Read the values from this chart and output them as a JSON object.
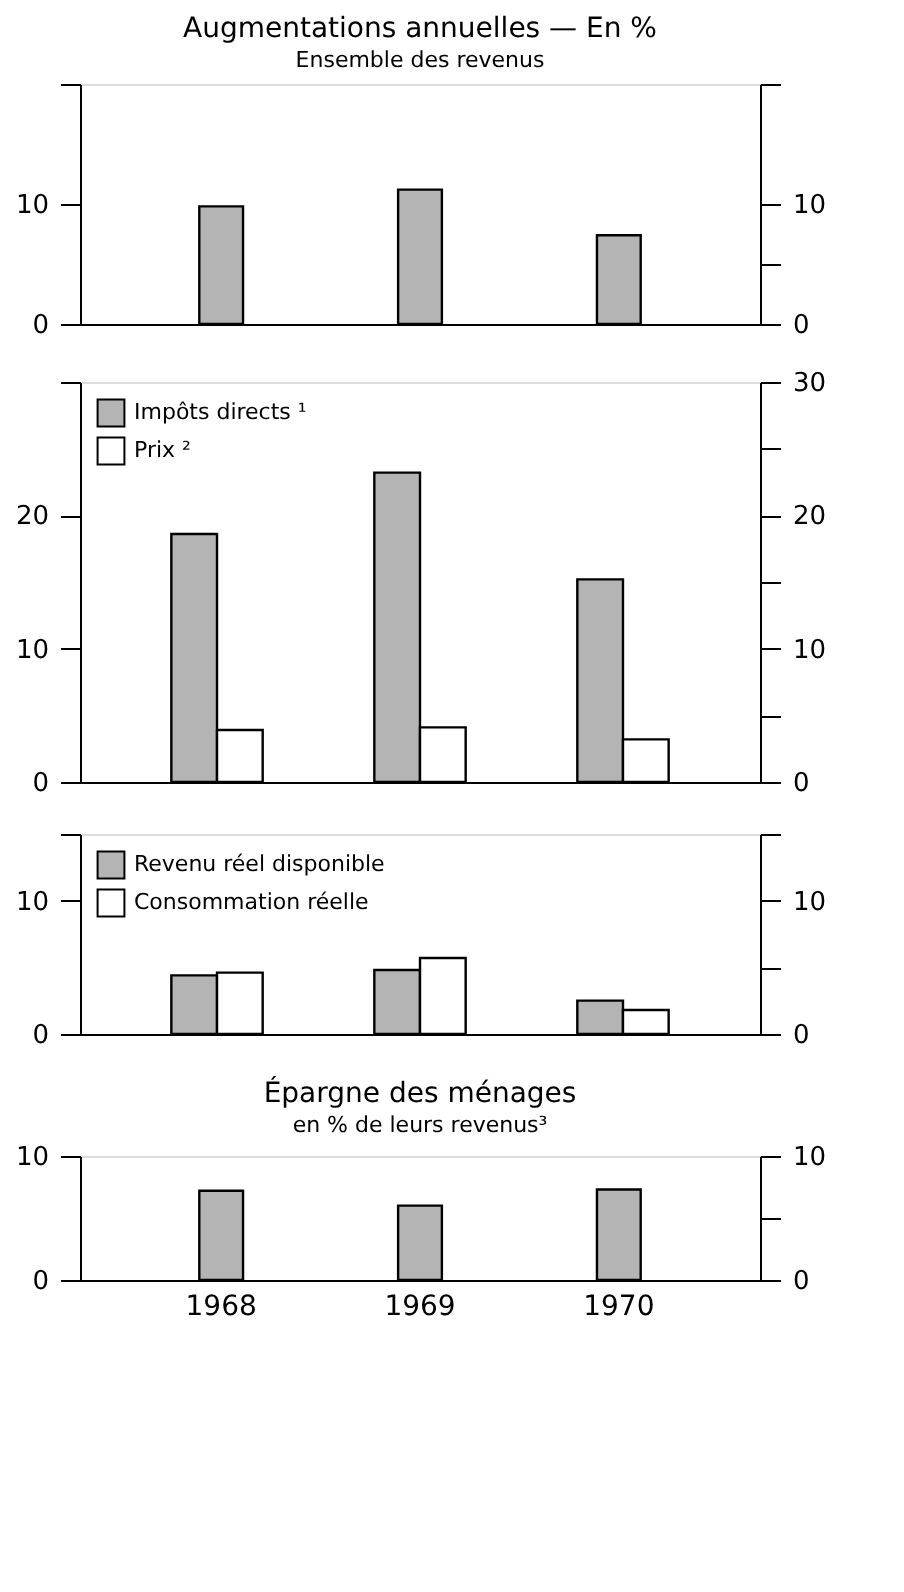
{
  "chart_data": [
    {
      "type": "bar",
      "title": "Augmentations annuelles — En %",
      "subtitle": "Ensemble des revenus",
      "categories": [
        "1968",
        "1969",
        "1970"
      ],
      "series": [
        {
          "color": "#b4b4b4",
          "values": [
            9.8,
            11.2,
            7.4
          ]
        }
      ],
      "ylim": [
        0,
        20
      ],
      "yticks": [
        0,
        10,
        {
          "value": 20,
          "label": null
        }
      ],
      "y2lim": [
        0,
        20
      ],
      "y2ticks": [
        0,
        {
          "value": 5,
          "label": null
        },
        10,
        {
          "value": 20,
          "label": null
        }
      ],
      "tick_labels": "y",
      "grid": false,
      "legend": false
    },
    {
      "type": "bar",
      "categories": [
        "1968",
        "1969",
        "1970"
      ],
      "series": [
        {
          "name": "Impôts directs ¹",
          "color": "#b4b4b4",
          "values": [
            18.6,
            23.2,
            15.2
          ]
        },
        {
          "name": "Prix ²",
          "color": "#ffffff",
          "values": [
            3.9,
            4.1,
            3.2
          ]
        }
      ],
      "ylim": [
        0,
        30
      ],
      "yticks": [
        0,
        10,
        20,
        {
          "value": 30,
          "label": null
        }
      ],
      "y2lim": [
        0,
        30
      ],
      "y2ticks": [
        0,
        {
          "value": 5,
          "label": null
        },
        10,
        {
          "value": 15,
          "label": null
        },
        20,
        {
          "value": 25,
          "label": null
        },
        30
      ],
      "tick_labels": "y",
      "grid": false,
      "legend": "top left"
    },
    {
      "type": "bar",
      "categories": [
        "1968",
        "1969",
        "1970"
      ],
      "series": [
        {
          "name": "Revenu réel disponible",
          "color": "#b4b4b4",
          "values": [
            4.4,
            4.8,
            2.5
          ]
        },
        {
          "name": "Consommation réelle",
          "color": "#ffffff",
          "values": [
            4.6,
            5.7,
            1.8
          ]
        }
      ],
      "ylim": [
        0,
        15
      ],
      "yticks": [
        0,
        10,
        {
          "value": 15,
          "label": null
        }
      ],
      "y2lim": [
        0,
        15
      ],
      "y2ticks": [
        0,
        {
          "value": 5,
          "label": null
        },
        10,
        {
          "value": 15,
          "label": null
        }
      ],
      "tick_labels": "y",
      "grid": false,
      "legend": "top left"
    },
    {
      "type": "bar",
      "title": "Épargne des ménages",
      "subtitle": "en % de leurs revenus³",
      "categories": [
        "1968",
        "1969",
        "1970"
      ],
      "series": [
        {
          "color": "#b4b4b4",
          "values": [
            7.2,
            6.0,
            7.3
          ]
        }
      ],
      "ylim": [
        0,
        10
      ],
      "yticks": [
        0,
        10
      ],
      "y2lim": [
        0,
        10
      ],
      "y2ticks": [
        0,
        {
          "value": 5,
          "label": null
        },
        10
      ],
      "grid": false,
      "legend": false
    }
  ]
}
